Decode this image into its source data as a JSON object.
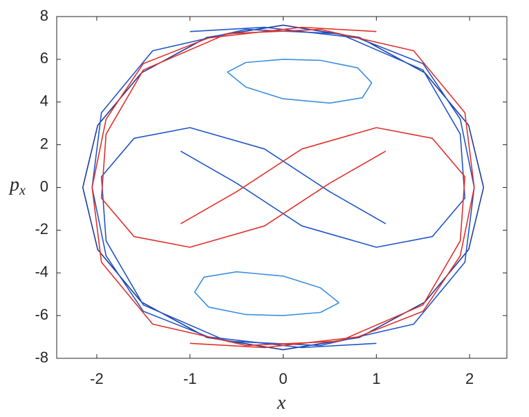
{
  "chart_data": {
    "type": "line",
    "xlabel": "x",
    "ylabel": {
      "base": "p",
      "sub": "x"
    },
    "xlim": [
      -2.43,
      2.4
    ],
    "ylim": [
      -8,
      8
    ],
    "xticks": [
      -2,
      -1,
      0,
      1,
      2
    ],
    "yticks": [
      -8,
      -6,
      -4,
      -2,
      0,
      2,
      4,
      6,
      8
    ],
    "series": [
      {
        "color": "#1a3a9c",
        "x": [
          2.15,
          1.99,
          1.52,
          0.82,
          0,
          -0.82,
          -1.52,
          -1.99,
          -2.15,
          -1.99,
          -1.52,
          -0.82,
          0,
          0.82,
          1.52,
          1.99,
          2.15
        ],
        "values": [
          0,
          2.91,
          5.37,
          7.02,
          7.6,
          7.02,
          5.37,
          2.91,
          0,
          -2.91,
          -5.37,
          -7.02,
          -7.6,
          -7.02,
          -5.37,
          -2.91,
          0
        ]
      },
      {
        "color": "#3a8ee0",
        "x": [
          -0.6,
          -0.4,
          0,
          0.4,
          0.8,
          0.95,
          0.85,
          0.5,
          0,
          -0.4,
          -0.6
        ],
        "values": [
          5.4,
          5.85,
          6.0,
          5.95,
          5.6,
          4.9,
          4.2,
          3.95,
          4.15,
          4.7,
          5.4
        ]
      },
      {
        "color": "#3a8ee0",
        "x": [
          0.6,
          0.4,
          0,
          -0.4,
          -0.8,
          -0.95,
          -0.85,
          -0.5,
          0,
          0.4,
          0.6
        ],
        "values": [
          -5.4,
          -5.85,
          -6.0,
          -5.95,
          -5.6,
          -4.9,
          -4.2,
          -3.95,
          -4.15,
          -4.7,
          -5.4
        ]
      },
      {
        "color": "#1f55c8",
        "x": [
          -1.1,
          -0.5,
          0.2,
          1.0,
          1.6,
          1.95,
          1.9,
          1.5,
          0.6,
          -0.4,
          -1.4,
          -1.95,
          -2.05,
          -1.9,
          -1.5,
          -0.8,
          0.2,
          1.0
        ],
        "values": [
          1.7,
          0.2,
          -1.8,
          -2.8,
          -2.3,
          -0.5,
          2.5,
          5.5,
          7.2,
          7.4,
          6.4,
          3.5,
          0,
          -3.2,
          -5.8,
          -7.0,
          -7.5,
          -7.3
        ]
      },
      {
        "color": "#1f55c8",
        "x": [
          1.1,
          0.5,
          -0.2,
          -1.0,
          -1.6,
          -1.95,
          -1.9,
          -1.5,
          -0.6,
          0.4,
          1.4,
          1.95,
          2.05,
          1.9,
          1.5,
          0.8,
          -0.2,
          -1.0
        ],
        "values": [
          -1.7,
          -0.2,
          1.8,
          2.8,
          2.3,
          0.5,
          -2.5,
          -5.5,
          -7.2,
          -7.4,
          -6.4,
          -3.5,
          0,
          3.2,
          5.8,
          7.0,
          7.5,
          7.3
        ]
      },
      {
        "color": "#e0302a",
        "x": [
          -1.1,
          -0.5,
          0.2,
          1.0,
          1.6,
          1.95,
          1.9,
          1.5,
          0.6,
          -0.4,
          -1.4,
          -1.95,
          -2.05,
          -1.9,
          -1.5,
          -0.8,
          0.2,
          1.0
        ],
        "values": [
          -1.7,
          -0.2,
          1.8,
          2.8,
          2.3,
          0.5,
          -2.5,
          -5.5,
          -7.2,
          -7.4,
          -6.4,
          -3.5,
          0,
          3.2,
          5.8,
          7.0,
          7.5,
          7.3
        ]
      },
      {
        "color": "#e0302a",
        "x": [
          1.1,
          0.5,
          -0.2,
          -1.0,
          -1.6,
          -1.95,
          -1.9,
          -1.5,
          -0.6,
          0.4,
          1.4,
          1.95,
          2.05,
          1.9,
          1.5,
          0.8,
          -0.2,
          -1.0
        ],
        "values": [
          1.7,
          0.2,
          -1.8,
          -2.8,
          -2.3,
          -0.5,
          2.5,
          5.5,
          7.2,
          7.4,
          6.4,
          3.5,
          0,
          -3.2,
          -5.8,
          -7.0,
          -7.5,
          -7.3
        ]
      }
    ]
  }
}
